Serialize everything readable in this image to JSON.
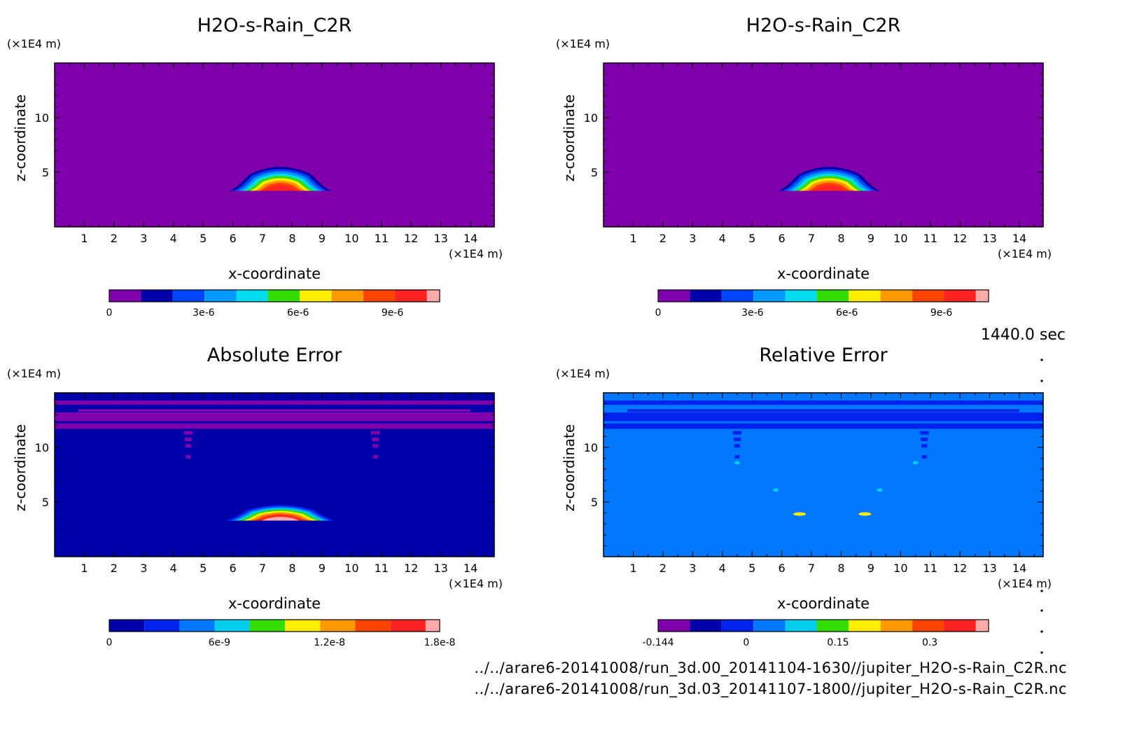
{
  "time_label": "1440.0 sec",
  "footer": {
    "file_1": "../../arare6-20141008/run_3d.00_20141104-1630//jupiter_H2O-s-Rain_C2R.nc",
    "file_2": "../../arare6-20141008/run_3d.03_20141107-1800//jupiter_H2O-s-Rain_C2R.nc"
  },
  "chart_data": [
    {
      "type": "heatmap",
      "title": "H2O-s-Rain_C2R",
      "xlabel": "x-coordinate",
      "ylabel": "z-coordinate",
      "x_unit": "(×1E4 m)",
      "y_unit": "(×1E4 m)",
      "xlim": [
        0,
        14.8
      ],
      "ylim": [
        0,
        15
      ],
      "x_ticks": [
        "1",
        "2",
        "3",
        "4",
        "5",
        "6",
        "7",
        "8",
        "9",
        "10",
        "11",
        "12",
        "13",
        "14"
      ],
      "y_ticks": [
        "5",
        "10"
      ],
      "background_color": "#7f00aa",
      "feature": {
        "x_center": 7.6,
        "base_z": 3.3,
        "top_z": 5.6,
        "half_width": 1.5
      },
      "colorbar": {
        "colors": [
          "#7f00aa",
          "#0000aa",
          "#0044ff",
          "#0099ff",
          "#00ddee",
          "#33dd00",
          "#ffee00",
          "#ff9900",
          "#ff4400",
          "#ff2222",
          "#ffaaaa"
        ],
        "tick_labels": [
          "0",
          "3e-6",
          "6e-6",
          "9e-6"
        ],
        "range": [
          0,
          1.05e-05
        ]
      }
    },
    {
      "type": "heatmap",
      "title": "H2O-s-Rain_C2R",
      "xlabel": "x-coordinate",
      "ylabel": "z-coordinate",
      "x_unit": "(×1E4 m)",
      "y_unit": "(×1E4 m)",
      "xlim": [
        0,
        14.8
      ],
      "ylim": [
        0,
        15
      ],
      "x_ticks": [
        "1",
        "2",
        "3",
        "4",
        "5",
        "6",
        "7",
        "8",
        "9",
        "10",
        "11",
        "12",
        "13",
        "14"
      ],
      "y_ticks": [
        "5",
        "10"
      ],
      "background_color": "#7f00aa",
      "feature": {
        "x_center": 7.6,
        "base_z": 3.3,
        "top_z": 5.6,
        "half_width": 1.5
      },
      "colorbar": {
        "colors": [
          "#7f00aa",
          "#0000aa",
          "#0044ff",
          "#0099ff",
          "#00ddee",
          "#33dd00",
          "#ffee00",
          "#ff9900",
          "#ff4400",
          "#ff2222",
          "#ffaaaa"
        ],
        "tick_labels": [
          "0",
          "3e-6",
          "6e-6",
          "9e-6"
        ],
        "range": [
          0,
          1.05e-05
        ]
      }
    },
    {
      "type": "heatmap",
      "title": "Absolute Error",
      "xlabel": "x-coordinate",
      "ylabel": "z-coordinate",
      "x_unit": "(×1E4 m)",
      "y_unit": "(×1E4 m)",
      "xlim": [
        0,
        14.8
      ],
      "ylim": [
        0,
        15
      ],
      "x_ticks": [
        "1",
        "2",
        "3",
        "4",
        "5",
        "6",
        "7",
        "8",
        "9",
        "10",
        "11",
        "12",
        "13",
        "14"
      ],
      "y_ticks": [
        "5",
        "10"
      ],
      "background_color": "#0000aa",
      "upper_band_color": "#7f00aa",
      "feature": {
        "x_center": 7.6,
        "base_z": 3.3,
        "top_z": 4.8,
        "half_width": 1.6
      },
      "colorbar": {
        "colors": [
          "#0000aa",
          "#0022ee",
          "#0077ff",
          "#00ccee",
          "#33dd00",
          "#ffee00",
          "#ff9900",
          "#ff4400",
          "#ff2222",
          "#ffaaaa"
        ],
        "tick_labels": [
          "0",
          "6e-9",
          "1.2e-8",
          "1.8e-8"
        ],
        "range": [
          0,
          1.8e-08
        ]
      }
    },
    {
      "type": "heatmap",
      "title": "Relative Error",
      "xlabel": "x-coordinate",
      "ylabel": "z-coordinate",
      "x_unit": "(×1E4 m)",
      "y_unit": "(×1E4 m)",
      "xlim": [
        0,
        14.8
      ],
      "ylim": [
        0,
        15
      ],
      "x_ticks": [
        "1",
        "2",
        "3",
        "4",
        "5",
        "6",
        "7",
        "8",
        "9",
        "10",
        "11",
        "12",
        "13",
        "14"
      ],
      "y_ticks": [
        "5",
        "10"
      ],
      "background_color": "#0077ff",
      "upper_band_color": "#0022ee",
      "colorbar": {
        "colors": [
          "#7f00aa",
          "#0000aa",
          "#0022ee",
          "#0077ff",
          "#00ccee",
          "#33dd00",
          "#ffee00",
          "#ff9900",
          "#ff4400",
          "#ff2222",
          "#ffaaaa"
        ],
        "tick_labels": [
          "-0.144",
          "0",
          "0.15",
          "0.3"
        ],
        "range": [
          -0.144,
          0.396
        ]
      }
    }
  ]
}
